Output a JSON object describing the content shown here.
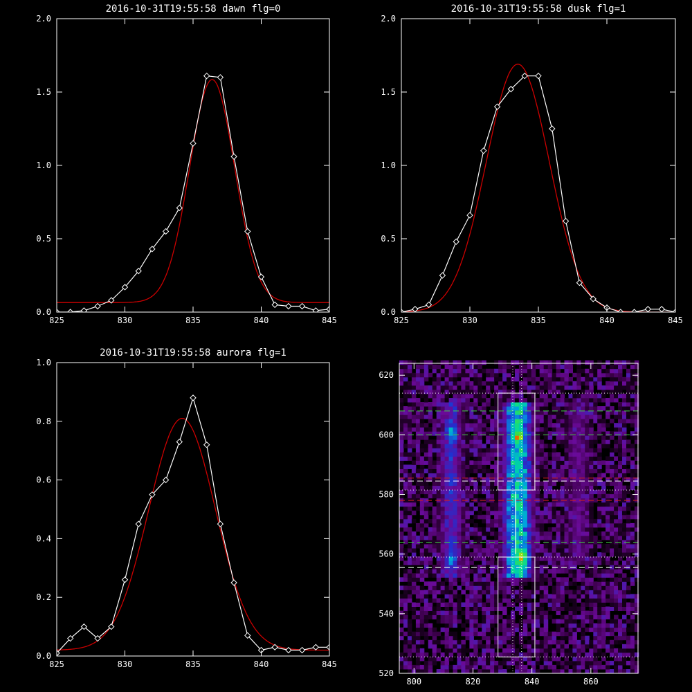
{
  "chart_data": [
    {
      "type": "line",
      "title": "2016-10-31T19:55:58 dawn flg=0",
      "xlabel": "",
      "ylabel": "",
      "xlim": [
        825,
        845
      ],
      "ylim": [
        0,
        2.0
      ],
      "xticks": [
        825,
        830,
        835,
        840,
        845
      ],
      "yticks": [
        0.0,
        0.5,
        1.0,
        1.5,
        2.0
      ],
      "ytick_labels": [
        "0.0",
        "0.5",
        "1.0",
        "1.5",
        "2.0"
      ],
      "series": [
        {
          "color": "#ffffff",
          "marker": "diamond",
          "x": [
            825,
            826,
            827,
            828,
            829,
            830,
            831,
            832,
            833,
            834,
            835,
            836,
            837,
            838,
            839,
            840,
            841,
            842,
            843,
            844,
            845
          ],
          "y": [
            0.0,
            0.0,
            0.01,
            0.04,
            0.08,
            0.17,
            0.28,
            0.43,
            0.55,
            0.71,
            1.15,
            1.61,
            1.6,
            1.06,
            0.55,
            0.24,
            0.05,
            0.04,
            0.04,
            0.01,
            0.02
          ]
        },
        {
          "color": "#cc0000",
          "marker": "none",
          "fit": "gaussian",
          "gaussian": {
            "amplitude": 1.52,
            "center": 836.4,
            "sigma": 1.65,
            "offset": 0.065
          }
        }
      ]
    },
    {
      "type": "line",
      "title": "2016-10-31T19:55:58 dusk flg=1",
      "xlabel": "",
      "ylabel": "",
      "xlim": [
        825,
        845
      ],
      "ylim": [
        0,
        2.0
      ],
      "xticks": [
        825,
        830,
        835,
        840,
        845
      ],
      "yticks": [
        0.0,
        0.5,
        1.0,
        1.5,
        2.0
      ],
      "ytick_labels": [
        "0.0",
        "0.5",
        "1.0",
        "1.5",
        "2.0"
      ],
      "series": [
        {
          "color": "#ffffff",
          "marker": "diamond",
          "x": [
            825,
            826,
            827,
            828,
            829,
            830,
            831,
            832,
            833,
            834,
            835,
            836,
            837,
            838,
            839,
            840,
            841,
            842,
            843,
            844,
            845
          ],
          "y": [
            0.0,
            0.02,
            0.05,
            0.25,
            0.48,
            0.66,
            1.1,
            1.4,
            1.52,
            1.61,
            1.61,
            1.25,
            0.62,
            0.2,
            0.09,
            0.03,
            0.0,
            0.0,
            0.02,
            0.02,
            0.0
          ]
        },
        {
          "color": "#cc0000",
          "marker": "none",
          "fit": "gaussian",
          "gaussian": {
            "amplitude": 1.69,
            "center": 833.5,
            "sigma": 2.3,
            "offset": 0.0
          }
        }
      ]
    },
    {
      "type": "line",
      "title": "2016-10-31T19:55:58 aurora flg=1",
      "xlabel": "",
      "ylabel": "",
      "xlim": [
        825,
        845
      ],
      "ylim": [
        0,
        1.0
      ],
      "xticks": [
        825,
        830,
        835,
        840,
        845
      ],
      "yticks": [
        0.0,
        0.2,
        0.4,
        0.6,
        0.8,
        1.0
      ],
      "ytick_labels": [
        "0.0",
        "0.2",
        "0.4",
        "0.6",
        "0.8",
        "1.0"
      ],
      "series": [
        {
          "color": "#ffffff",
          "marker": "diamond",
          "x": [
            825,
            826,
            827,
            828,
            829,
            830,
            831,
            832,
            833,
            834,
            835,
            836,
            837,
            838,
            839,
            840,
            841,
            842,
            843,
            844,
            845
          ],
          "y": [
            0.01,
            0.06,
            0.1,
            0.06,
            0.1,
            0.26,
            0.45,
            0.55,
            0.6,
            0.73,
            0.88,
            0.72,
            0.45,
            0.25,
            0.07,
            0.02,
            0.03,
            0.02,
            0.02,
            0.03,
            0.03
          ]
        },
        {
          "color": "#cc0000",
          "marker": "none",
          "fit": "gaussian",
          "gaussian": {
            "amplitude": 0.79,
            "center": 834.2,
            "sigma": 2.45,
            "offset": 0.02
          }
        }
      ]
    },
    {
      "type": "heatmap",
      "title": "",
      "xlabel": "",
      "ylabel": "",
      "xlim": [
        795,
        876
      ],
      "ylim": [
        520,
        624
      ],
      "xticks": [
        800,
        820,
        840,
        860
      ],
      "yticks": [
        520,
        540,
        560,
        580,
        600,
        620
      ],
      "colormap": [
        "#000000",
        "#3a0048",
        "#6a0a98",
        "#2030d0",
        "#00a0e0",
        "#00d8a0",
        "#40e040",
        "#c8e000",
        "#ff2000"
      ],
      "bands": [
        {
          "x_center": 812,
          "width": 4,
          "y_range": [
            552,
            610
          ],
          "peak": 0.55
        },
        {
          "x_center": 834.5,
          "width": 5,
          "y_range": [
            552,
            610
          ],
          "peak": 1.0
        },
        {
          "x_center": 855,
          "width": 4,
          "y_range": [
            556,
            610
          ],
          "peak": 0.35
        }
      ],
      "hotspots": [
        {
          "x": 834.5,
          "y": 599,
          "intensity": 1.0
        },
        {
          "x": 836,
          "y": 558,
          "intensity": 0.95
        },
        {
          "x": 812,
          "y": 558,
          "intensity": 0.55
        },
        {
          "x": 812,
          "y": 600,
          "intensity": 0.6
        }
      ],
      "rectangles": [
        {
          "x": [
            828.5,
            841
          ],
          "y": [
            581.5,
            614
          ],
          "color": "#ffffff",
          "style": "solid"
        },
        {
          "x": [
            828.5,
            841
          ],
          "y": [
            525.5,
            559
          ],
          "color": "#ffffff",
          "style": "solid"
        }
      ],
      "hlines": [
        {
          "y": 614,
          "color": "#ffffff",
          "style": "dotted"
        },
        {
          "y": 608,
          "color": "#40d040",
          "style": "dashed"
        },
        {
          "y": 600,
          "color": "#40d040",
          "style": "dashed"
        },
        {
          "y": 585.5,
          "color": "#cc2020",
          "style": "dashed"
        },
        {
          "y": 584.5,
          "color": "#ffffff",
          "style": "dashed"
        },
        {
          "y": 581.5,
          "color": "#ffffff",
          "style": "dotted"
        },
        {
          "y": 578,
          "color": "#cc2020",
          "style": "dashed"
        },
        {
          "y": 564,
          "color": "#40d040",
          "style": "dashed"
        },
        {
          "y": 559,
          "color": "#ffffff",
          "style": "dotted"
        },
        {
          "y": 555.5,
          "color": "#40d040",
          "style": "dashed"
        },
        {
          "y": 555.5,
          "color": "#ffffff",
          "style": "dashed"
        },
        {
          "y": 525.5,
          "color": "#ffffff",
          "style": "dotted"
        }
      ],
      "vlines": [
        {
          "x": 833.5,
          "color": "#ffffff",
          "style": "dotted"
        },
        {
          "x": 836.5,
          "color": "#ffffff",
          "style": "dotted"
        }
      ],
      "center_line": {
        "x": [
          834.5,
          834.5
        ],
        "y": [
          560,
          581
        ],
        "color": "#ffffff"
      }
    }
  ]
}
